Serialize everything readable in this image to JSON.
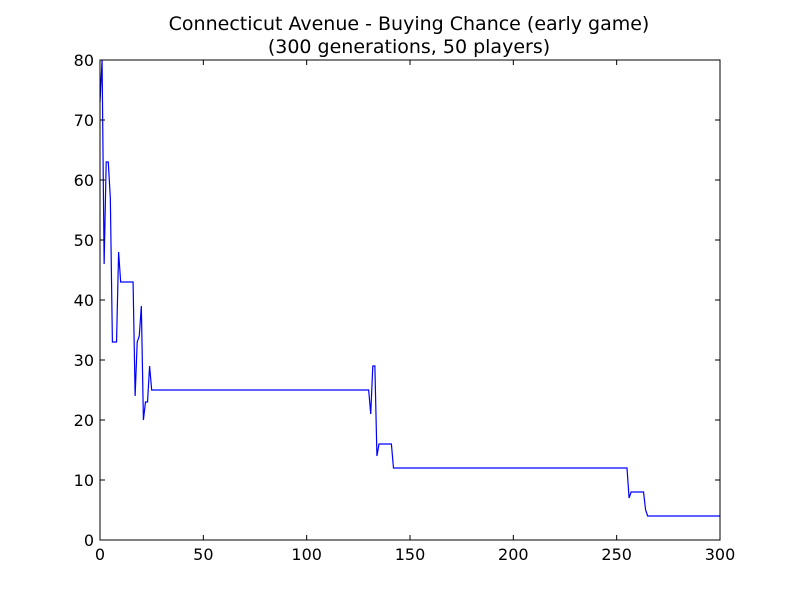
{
  "chart_data": {
    "type": "line",
    "title": "Connecticut Avenue - Buying Chance (early game)",
    "subtitle": "(300 generations, 50 players)",
    "xlabel": "",
    "ylabel": "",
    "xlim": [
      0,
      300
    ],
    "ylim": [
      0,
      80
    ],
    "xticks": [
      0,
      50,
      100,
      150,
      200,
      250,
      300
    ],
    "yticks": [
      0,
      10,
      20,
      30,
      40,
      50,
      60,
      70,
      80
    ],
    "grid": false,
    "legend": "none",
    "series": [
      {
        "color": "#0000ff",
        "points": [
          [
            0,
            73
          ],
          [
            1,
            80
          ],
          [
            2,
            46
          ],
          [
            3,
            63
          ],
          [
            4,
            63
          ],
          [
            5,
            57
          ],
          [
            6,
            33
          ],
          [
            8,
            33
          ],
          [
            9,
            48
          ],
          [
            10,
            43
          ],
          [
            16,
            43
          ],
          [
            17,
            24
          ],
          [
            18,
            33
          ],
          [
            19,
            34
          ],
          [
            20,
            39
          ],
          [
            21,
            20
          ],
          [
            22,
            23
          ],
          [
            23,
            23
          ],
          [
            24,
            29
          ],
          [
            25,
            25
          ],
          [
            130,
            25
          ],
          [
            131,
            21
          ],
          [
            132,
            29
          ],
          [
            133,
            29
          ],
          [
            134,
            14
          ],
          [
            135,
            16
          ],
          [
            141,
            16
          ],
          [
            142,
            12
          ],
          [
            255,
            12
          ],
          [
            256,
            7
          ],
          [
            257,
            8
          ],
          [
            263,
            8
          ],
          [
            264,
            5
          ],
          [
            265,
            4
          ],
          [
            300,
            4
          ]
        ]
      }
    ]
  }
}
